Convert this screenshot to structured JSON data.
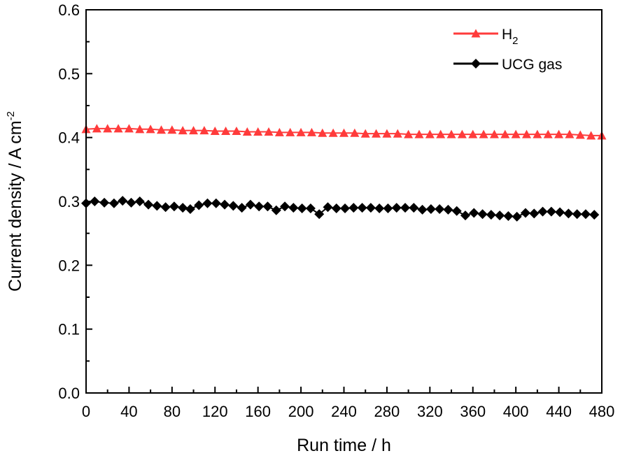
{
  "chart_data": {
    "type": "line",
    "xlabel": "Run time /  h",
    "ylabel": "Current density / A cm",
    "ylabel_superscript": "-2",
    "xlim": [
      0,
      480
    ],
    "ylim": [
      0.0,
      0.6
    ],
    "x_ticks": [
      "0",
      "40",
      "80",
      "120",
      "160",
      "200",
      "240",
      "280",
      "320",
      "360",
      "400",
      "440",
      "480"
    ],
    "y_ticks": [
      "0.0",
      "0.1",
      "0.2",
      "0.3",
      "0.4",
      "0.5",
      "0.6"
    ],
    "grid": false,
    "legend_position": "top-right",
    "series": [
      {
        "name": "H",
        "name_subscript": "2",
        "color": "#ff3b3b",
        "marker": "triangle",
        "x": [
          0,
          10,
          20,
          30,
          40,
          50,
          60,
          70,
          80,
          90,
          100,
          110,
          120,
          130,
          140,
          150,
          160,
          170,
          180,
          190,
          200,
          210,
          220,
          230,
          240,
          250,
          260,
          270,
          280,
          290,
          300,
          310,
          320,
          330,
          340,
          350,
          360,
          370,
          380,
          390,
          400,
          410,
          420,
          430,
          440,
          450,
          460,
          470,
          480
        ],
        "y": [
          0.413,
          0.414,
          0.414,
          0.414,
          0.414,
          0.413,
          0.413,
          0.412,
          0.412,
          0.411,
          0.411,
          0.411,
          0.41,
          0.41,
          0.41,
          0.409,
          0.409,
          0.409,
          0.408,
          0.408,
          0.408,
          0.408,
          0.407,
          0.407,
          0.407,
          0.407,
          0.406,
          0.406,
          0.406,
          0.406,
          0.405,
          0.405,
          0.405,
          0.405,
          0.405,
          0.405,
          0.405,
          0.405,
          0.405,
          0.405,
          0.405,
          0.405,
          0.405,
          0.405,
          0.405,
          0.405,
          0.404,
          0.403,
          0.403
        ]
      },
      {
        "name": "UCG gas",
        "color": "#000000",
        "marker": "diamond",
        "x": [
          0,
          8,
          17,
          26,
          34,
          42,
          50,
          58,
          66,
          74,
          82,
          90,
          97,
          105,
          113,
          121,
          129,
          137,
          145,
          153,
          161,
          169,
          177,
          185,
          193,
          201,
          209,
          217,
          225,
          233,
          241,
          249,
          257,
          265,
          273,
          281,
          289,
          297,
          305,
          313,
          321,
          329,
          337,
          345,
          353,
          361,
          369,
          377,
          385,
          393,
          401,
          409,
          417,
          425,
          433,
          441,
          449,
          457,
          465,
          473
        ],
        "y": [
          0.297,
          0.3,
          0.298,
          0.297,
          0.301,
          0.298,
          0.3,
          0.295,
          0.293,
          0.291,
          0.292,
          0.29,
          0.288,
          0.294,
          0.297,
          0.297,
          0.295,
          0.293,
          0.29,
          0.295,
          0.292,
          0.292,
          0.286,
          0.292,
          0.29,
          0.289,
          0.289,
          0.28,
          0.291,
          0.289,
          0.289,
          0.29,
          0.29,
          0.29,
          0.289,
          0.289,
          0.29,
          0.29,
          0.29,
          0.287,
          0.288,
          0.288,
          0.287,
          0.285,
          0.278,
          0.282,
          0.28,
          0.279,
          0.278,
          0.277,
          0.276,
          0.282,
          0.281,
          0.284,
          0.284,
          0.283,
          0.281,
          0.28,
          0.28,
          0.279
        ]
      }
    ]
  }
}
